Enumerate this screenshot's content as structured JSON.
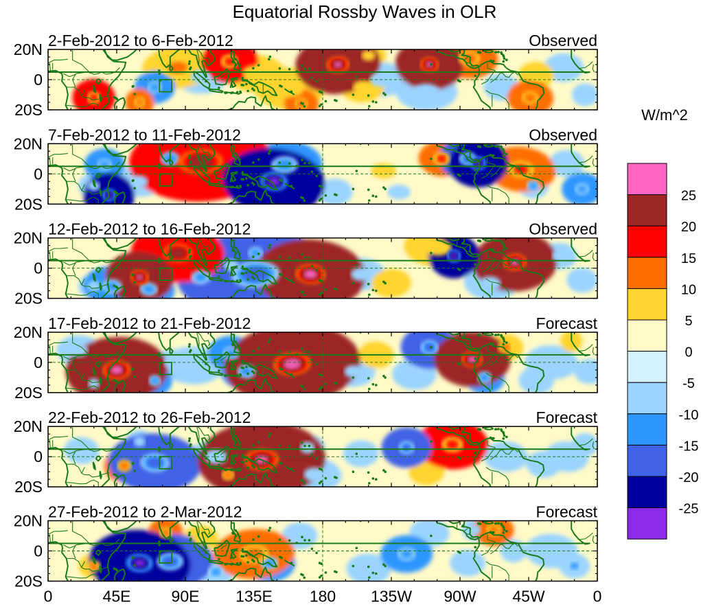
{
  "title": "Equatorial Rossby Waves in OLR",
  "y_tick_labels": [
    "20N",
    "0",
    "20S"
  ],
  "x_tick_labels": [
    "0",
    "45E",
    "90E",
    "135E",
    "180",
    "135W",
    "90W",
    "45W",
    "0"
  ],
  "panels": [
    {
      "date_range": "2-Feb-2012 to 6-Feb-2012",
      "status": "Observed"
    },
    {
      "date_range": "7-Feb-2012 to 11-Feb-2012",
      "status": "Observed"
    },
    {
      "date_range": "12-Feb-2012 to 16-Feb-2012",
      "status": "Observed"
    },
    {
      "date_range": "17-Feb-2012 to 21-Feb-2012",
      "status": "Forecast"
    },
    {
      "date_range": "22-Feb-2012 to 26-Feb-2012",
      "status": "Forecast"
    },
    {
      "date_range": "27-Feb-2012 to 2-Mar-2012",
      "status": "Forecast"
    }
  ],
  "colorbar": {
    "unit": "W/m^2",
    "labels": [
      "25",
      "20",
      "15",
      "10",
      "5",
      "0",
      "-5",
      "-10",
      "-15",
      "-20",
      "-25"
    ],
    "colors": [
      "#ff66c4",
      "#9c2626",
      "#ff0000",
      "#ff6e00",
      "#ffd42e",
      "#fffac8",
      "#d4f3ff",
      "#9ad4ff",
      "#2e96ff",
      "#3f62e6",
      "#00009c",
      "#8b2be8"
    ]
  },
  "map_colors": {
    "coast": "#1a7a1a",
    "refline": "#1a7a1a"
  },
  "features": [
    [
      [
        85,
        8,
        16,
        10,
        -3
      ],
      [
        119,
        12,
        8,
        16,
        -2
      ],
      [
        190,
        10,
        10,
        21,
        -4
      ],
      [
        206,
        -5,
        10,
        9,
        -1
      ],
      [
        250,
        10,
        8,
        22,
        4
      ],
      [
        320,
        3,
        8,
        9,
        3
      ],
      [
        316,
        -12,
        8,
        13,
        4
      ],
      [
        30,
        -12,
        6,
        17,
        3
      ],
      [
        60,
        -15,
        5,
        13,
        4
      ],
      [
        70,
        -5,
        7,
        -12,
        -1
      ],
      [
        158,
        -6,
        16,
        7,
        3
      ],
      [
        218,
        0,
        12,
        -7,
        -1
      ],
      [
        248,
        -8,
        14,
        -8,
        1
      ],
      [
        276,
        14,
        10,
        14,
        3
      ],
      [
        297,
        -5,
        8,
        -8,
        2
      ],
      [
        338,
        8,
        9,
        -7,
        -1
      ],
      [
        352,
        -10,
        6,
        -8,
        -1
      ],
      [
        100,
        2,
        12,
        -6,
        2
      ],
      [
        136,
        4,
        14,
        9,
        4
      ],
      [
        166,
        -16,
        6,
        14,
        2
      ],
      [
        210,
        16,
        8,
        6,
        2
      ]
    ],
    [
      [
        80,
        10,
        9,
        -14,
        -1
      ],
      [
        100,
        8,
        20,
        19,
        -2
      ],
      [
        155,
        6,
        13,
        -13,
        -3
      ],
      [
        148,
        -5,
        12,
        -24,
        5
      ],
      [
        37,
        6,
        7,
        -12,
        -1
      ],
      [
        40,
        -14,
        6,
        -21,
        2
      ],
      [
        220,
        2,
        15,
        5,
        1
      ],
      [
        258,
        10,
        8,
        15,
        4
      ],
      [
        275,
        10,
        8,
        -16,
        3
      ],
      [
        282,
        7,
        7,
        -22,
        -2
      ],
      [
        310,
        3,
        12,
        15,
        6
      ],
      [
        318,
        -8,
        7,
        -10,
        5
      ],
      [
        340,
        7,
        8,
        -9,
        -1
      ],
      [
        350,
        -10,
        7,
        -11,
        -2
      ],
      [
        30,
        -8,
        7,
        -7,
        3
      ],
      [
        188,
        -12,
        8,
        -7,
        -1
      ],
      [
        230,
        -12,
        14,
        -5,
        1
      ],
      [
        60,
        -5,
        10,
        -6,
        5
      ]
    ],
    [
      [
        85,
        10,
        13,
        19,
        3
      ],
      [
        136,
        10,
        7,
        -13,
        -2
      ],
      [
        136,
        -4,
        22,
        -18,
        -3
      ],
      [
        172,
        -4,
        13,
        24,
        3
      ],
      [
        255,
        14,
        15,
        9,
        3
      ],
      [
        266,
        8,
        6,
        -23,
        2
      ],
      [
        306,
        4,
        10,
        22,
        -3
      ],
      [
        60,
        -6,
        8,
        21,
        3
      ],
      [
        66,
        -14,
        9,
        -11,
        5
      ],
      [
        42,
        -12,
        10,
        -11,
        4
      ],
      [
        30,
        -12,
        7,
        -9,
        -1
      ],
      [
        100,
        -6,
        10,
        -10,
        -1
      ],
      [
        120,
        2,
        8,
        -8,
        0
      ],
      [
        205,
        -4,
        11,
        -7,
        -1
      ],
      [
        225,
        -10,
        9,
        7,
        -3
      ],
      [
        290,
        -10,
        12,
        -6,
        5
      ],
      [
        335,
        8,
        8,
        -7,
        1
      ],
      [
        350,
        -8,
        7,
        -8,
        2
      ]
    ],
    [
      [
        20,
        8,
        10,
        -8,
        -1
      ],
      [
        45,
        -5,
        12,
        24,
        -3
      ],
      [
        70,
        -12,
        6,
        -12,
        2
      ],
      [
        95,
        -2,
        14,
        -7,
        2
      ],
      [
        120,
        6,
        8,
        -12,
        1
      ],
      [
        130,
        -6,
        9,
        -12,
        3
      ],
      [
        160,
        -1,
        16,
        25,
        -4
      ],
      [
        250,
        10,
        8,
        -18,
        1
      ],
      [
        278,
        2,
        9,
        24,
        1
      ],
      [
        286,
        -10,
        7,
        -12,
        4
      ],
      [
        300,
        10,
        8,
        10,
        2
      ],
      [
        330,
        0,
        12,
        -8,
        3
      ],
      [
        355,
        -6,
        7,
        -8,
        -1
      ],
      [
        30,
        -14,
        6,
        -9,
        5
      ],
      [
        80,
        0,
        7,
        -6,
        5
      ],
      [
        200,
        -6,
        10,
        -7,
        -1
      ],
      [
        215,
        5,
        8,
        7,
        3
      ],
      [
        240,
        -8,
        10,
        -6,
        2
      ],
      [
        320,
        -12,
        8,
        -6,
        2
      ],
      [
        343,
        14,
        5,
        9,
        3
      ]
    ],
    [
      [
        70,
        -4,
        13,
        -18,
        3
      ],
      [
        50,
        -6,
        7,
        12,
        -2
      ],
      [
        22,
        4,
        8,
        -7,
        3
      ],
      [
        60,
        10,
        6,
        -9,
        -1
      ],
      [
        110,
        0,
        12,
        -8,
        1
      ],
      [
        118,
        -12,
        6,
        12,
        -2
      ],
      [
        140,
        -2,
        15,
        21,
        -2
      ],
      [
        170,
        6,
        8,
        -8,
        1
      ],
      [
        235,
        6,
        7,
        -17,
        -1
      ],
      [
        265,
        8,
        10,
        16,
        2
      ],
      [
        300,
        0,
        10,
        -7,
        2
      ],
      [
        325,
        -5,
        8,
        -7,
        0
      ],
      [
        340,
        0,
        10,
        -8,
        5
      ],
      [
        352,
        8,
        6,
        -7,
        -1
      ],
      [
        175,
        -12,
        12,
        -8,
        3
      ],
      [
        205,
        2,
        8,
        -6,
        -1
      ],
      [
        248,
        -10,
        8,
        6,
        0
      ]
    ],
    [
      [
        30,
        -10,
        7,
        10,
        -1
      ],
      [
        60,
        -8,
        12,
        -22,
        4
      ],
      [
        80,
        -7,
        12,
        -18,
        -1
      ],
      [
        77,
        12,
        6,
        12,
        0
      ],
      [
        135,
        -2,
        14,
        13,
        -3
      ],
      [
        110,
        -14,
        8,
        -10,
        -1
      ],
      [
        100,
        8,
        8,
        8,
        1
      ],
      [
        145,
        -8,
        9,
        -11,
        -1
      ],
      [
        235,
        -2,
        9,
        -11,
        -1
      ],
      [
        250,
        12,
        9,
        -9,
        2
      ],
      [
        280,
        14,
        6,
        -9,
        -1
      ],
      [
        292,
        14,
        7,
        12,
        5
      ],
      [
        305,
        0,
        6,
        -7,
        0
      ],
      [
        330,
        0,
        12,
        -8,
        3
      ],
      [
        345,
        -10,
        7,
        -10,
        2
      ],
      [
        165,
        10,
        8,
        -6,
        -1
      ],
      [
        210,
        -12,
        10,
        -6,
        2
      ],
      [
        275,
        -8,
        8,
        -6,
        2
      ]
    ]
  ]
}
